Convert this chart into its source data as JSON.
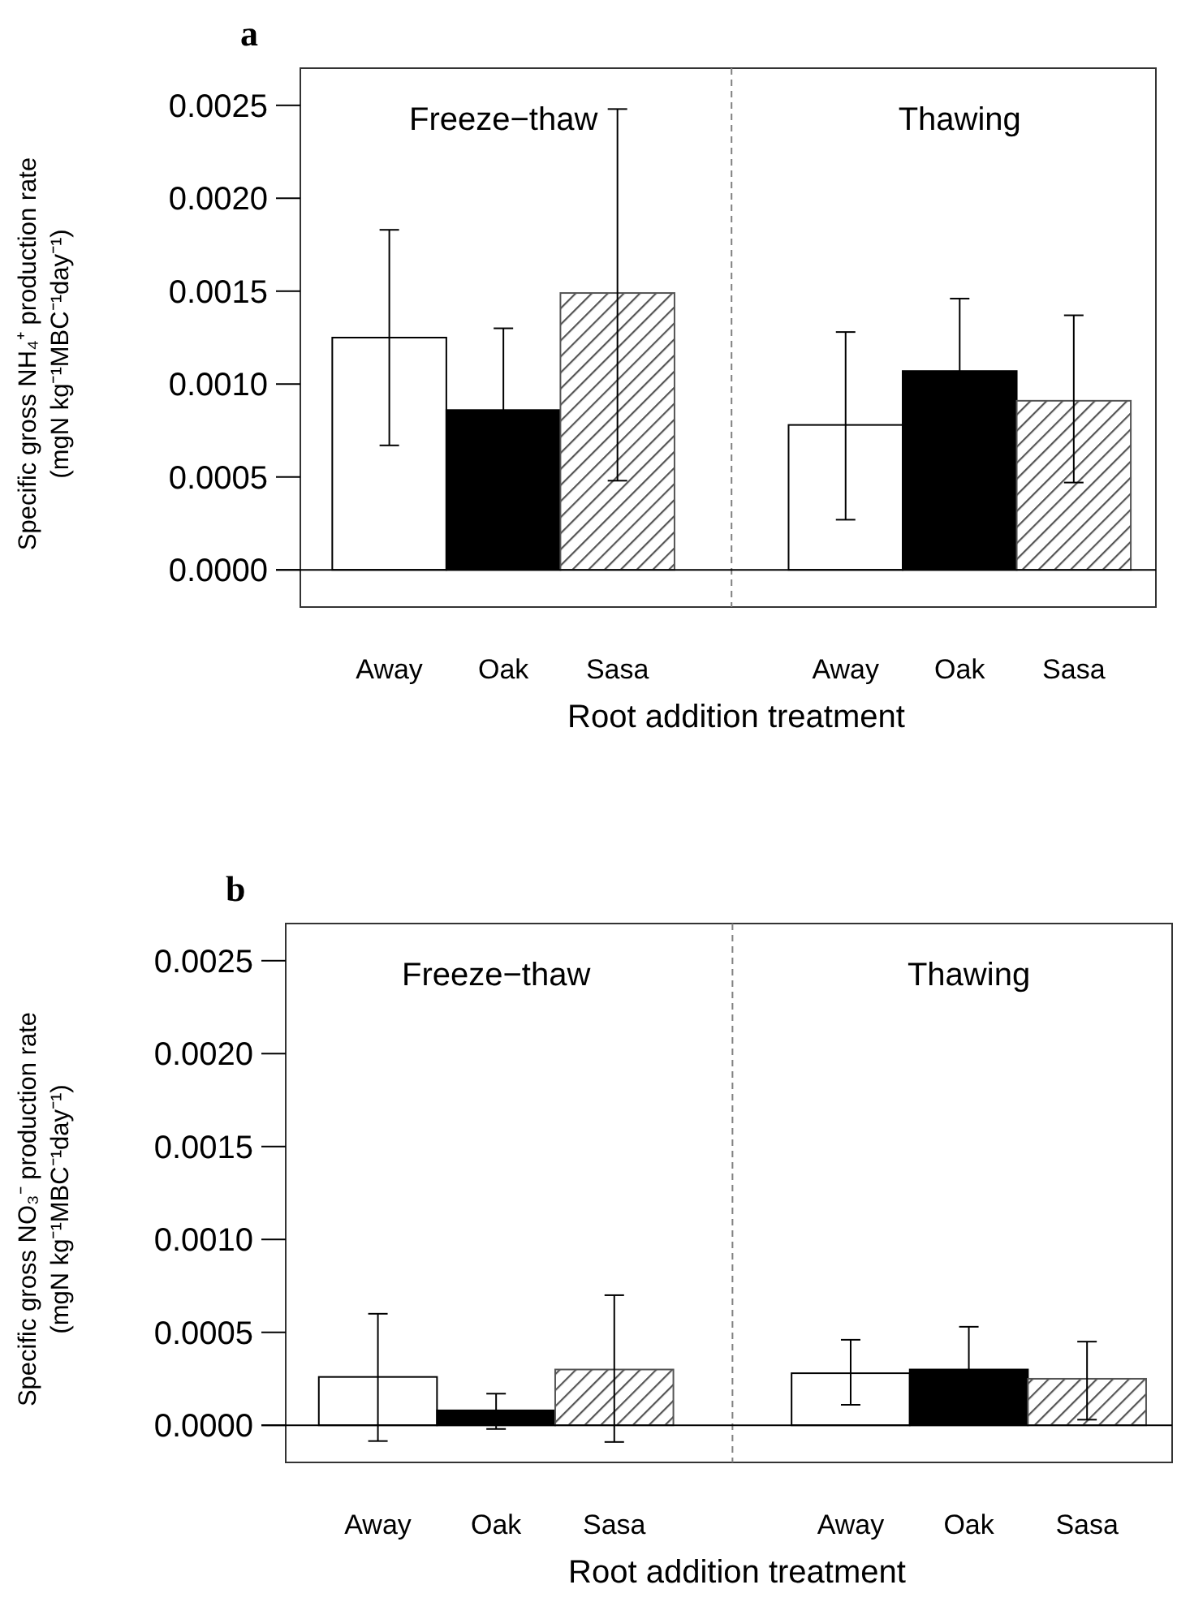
{
  "chart_data": [
    {
      "type": "bar",
      "title": "a",
      "ylabel": "Specific gross NH₄⁺ production rate\n(mgN kg⁻¹MBC⁻¹day⁻¹)",
      "xlabel": "Root addition treatment",
      "annotations": [
        "Freeze−thaw",
        "Thawing"
      ],
      "categories": [
        "Away",
        "Oak",
        "Sasa",
        null,
        "Away",
        "Oak",
        "Sasa"
      ],
      "values": [
        0.00125,
        0.00086,
        0.00149,
        null,
        0.00078,
        0.00107,
        0.00091
      ],
      "colors": [
        "#ffffff",
        "#000000",
        "#555555",
        null,
        "#ffffff",
        "#000000",
        "#555555"
      ],
      "errors": [
        [
          0.00067,
          0.00183
        ],
        0.00044,
        [
          0.00048,
          0.00248
        ],
        null,
        [
          0.00027,
          0.00128
        ],
        0.00039,
        [
          0.00047,
          0.00137
        ]
      ],
      "ylim": [
        -0.0002,
        0.0027
      ],
      "yticks": [
        {
          "value": 0,
          "label": "0.0000"
        },
        {
          "value": 0.0005,
          "label": "0.0005"
        },
        {
          "value": 0.001,
          "label": "0.0010"
        },
        {
          "value": 0.0015,
          "label": "0.0015"
        },
        {
          "value": 0.002,
          "label": "0.0020"
        },
        {
          "value": 0.0025,
          "label": "0.0025"
        }
      ]
    },
    {
      "type": "bar",
      "title": "b",
      "ylabel": "Specific gross NO₃⁻ production rate\n(mgN kg⁻¹MBC⁻¹day⁻¹)",
      "xlabel": "Root addition treatment",
      "annotations": [
        "Freeze−thaw",
        "Thawing"
      ],
      "categories": [
        "Away",
        "Oak",
        "Sasa",
        null,
        "Away",
        "Oak",
        "Sasa"
      ],
      "values": [
        0.00026,
        8e-05,
        0.0003,
        null,
        0.00028,
        0.0003,
        0.00025
      ],
      "colors": [
        "#ffffff",
        "#000000",
        "#555555",
        null,
        "#ffffff",
        "#000000",
        "#555555"
      ],
      "errors": [
        [
          -8.5e-05,
          0.0006
        ],
        [
          -2e-05,
          0.00017
        ],
        [
          -9e-05,
          0.0007
        ],
        null,
        [
          0.00011,
          0.00046
        ],
        0.00023,
        [
          3e-05,
          0.00045
        ]
      ],
      "ylim": [
        -0.0002,
        0.0027
      ],
      "yticks": [
        {
          "value": 0,
          "label": "0.0000"
        },
        {
          "value": 0.0005,
          "label": "0.0005"
        },
        {
          "value": 0.001,
          "label": "0.0010"
        },
        {
          "value": 0.0015,
          "label": "0.0015"
        },
        {
          "value": 0.002,
          "label": "0.0020"
        },
        {
          "value": 0.0025,
          "label": "0.0025"
        }
      ]
    }
  ]
}
